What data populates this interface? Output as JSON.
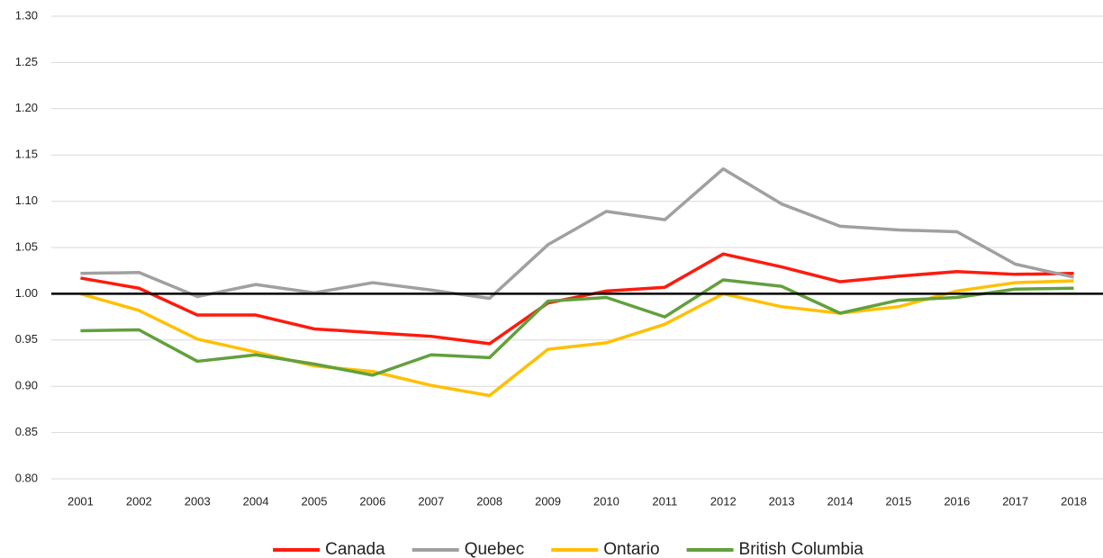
{
  "chart_data": {
    "type": "line",
    "categories": [
      "2001",
      "2002",
      "2003",
      "2004",
      "2005",
      "2006",
      "2007",
      "2008",
      "2009",
      "2010",
      "2011",
      "2012",
      "2013",
      "2014",
      "2015",
      "2016",
      "2017",
      "2018"
    ],
    "series": [
      {
        "name": "Canada",
        "color": "#ff1a0d",
        "values": [
          1.017,
          1.006,
          0.977,
          0.977,
          0.962,
          0.958,
          0.954,
          0.946,
          0.99,
          1.003,
          1.007,
          1.043,
          1.029,
          1.013,
          1.019,
          1.024,
          1.021,
          1.022
        ]
      },
      {
        "name": "Quebec",
        "color": "#a0a0a0",
        "values": [
          1.022,
          1.023,
          0.997,
          1.01,
          1.001,
          1.012,
          1.004,
          0.995,
          1.053,
          1.089,
          1.08,
          1.135,
          1.097,
          1.073,
          1.069,
          1.067,
          1.032,
          1.018
        ]
      },
      {
        "name": "Ontario",
        "color": "#ffc000",
        "values": [
          1.0,
          0.982,
          0.951,
          0.937,
          0.922,
          0.916,
          0.901,
          0.89,
          0.94,
          0.947,
          0.967,
          1.0,
          0.986,
          0.979,
          0.986,
          1.003,
          1.012,
          1.014
        ]
      },
      {
        "name": "British Columbia",
        "color": "#62a03c",
        "values": [
          0.96,
          0.961,
          0.927,
          0.934,
          0.924,
          0.912,
          0.934,
          0.931,
          0.992,
          0.996,
          0.975,
          1.015,
          1.008,
          0.979,
          0.993,
          0.996,
          1.005,
          1.006
        ]
      }
    ],
    "ylim": [
      0.8,
      1.3
    ],
    "yticks": [
      {
        "value": 0.8,
        "label": "0.80"
      },
      {
        "value": 0.85,
        "label": "0.85"
      },
      {
        "value": 0.9,
        "label": "0.90"
      },
      {
        "value": 0.95,
        "label": "0.95"
      },
      {
        "value": 1.0,
        "label": "1.00"
      },
      {
        "value": 1.05,
        "label": "1.05"
      },
      {
        "value": 1.1,
        "label": "1.10"
      },
      {
        "value": 1.15,
        "label": "1.15"
      },
      {
        "value": 1.2,
        "label": "1.20"
      },
      {
        "value": 1.25,
        "label": "1.25"
      },
      {
        "value": 1.3,
        "label": "1.30"
      }
    ],
    "reference_line": 1.0,
    "grid": true,
    "legend": "bottom"
  }
}
